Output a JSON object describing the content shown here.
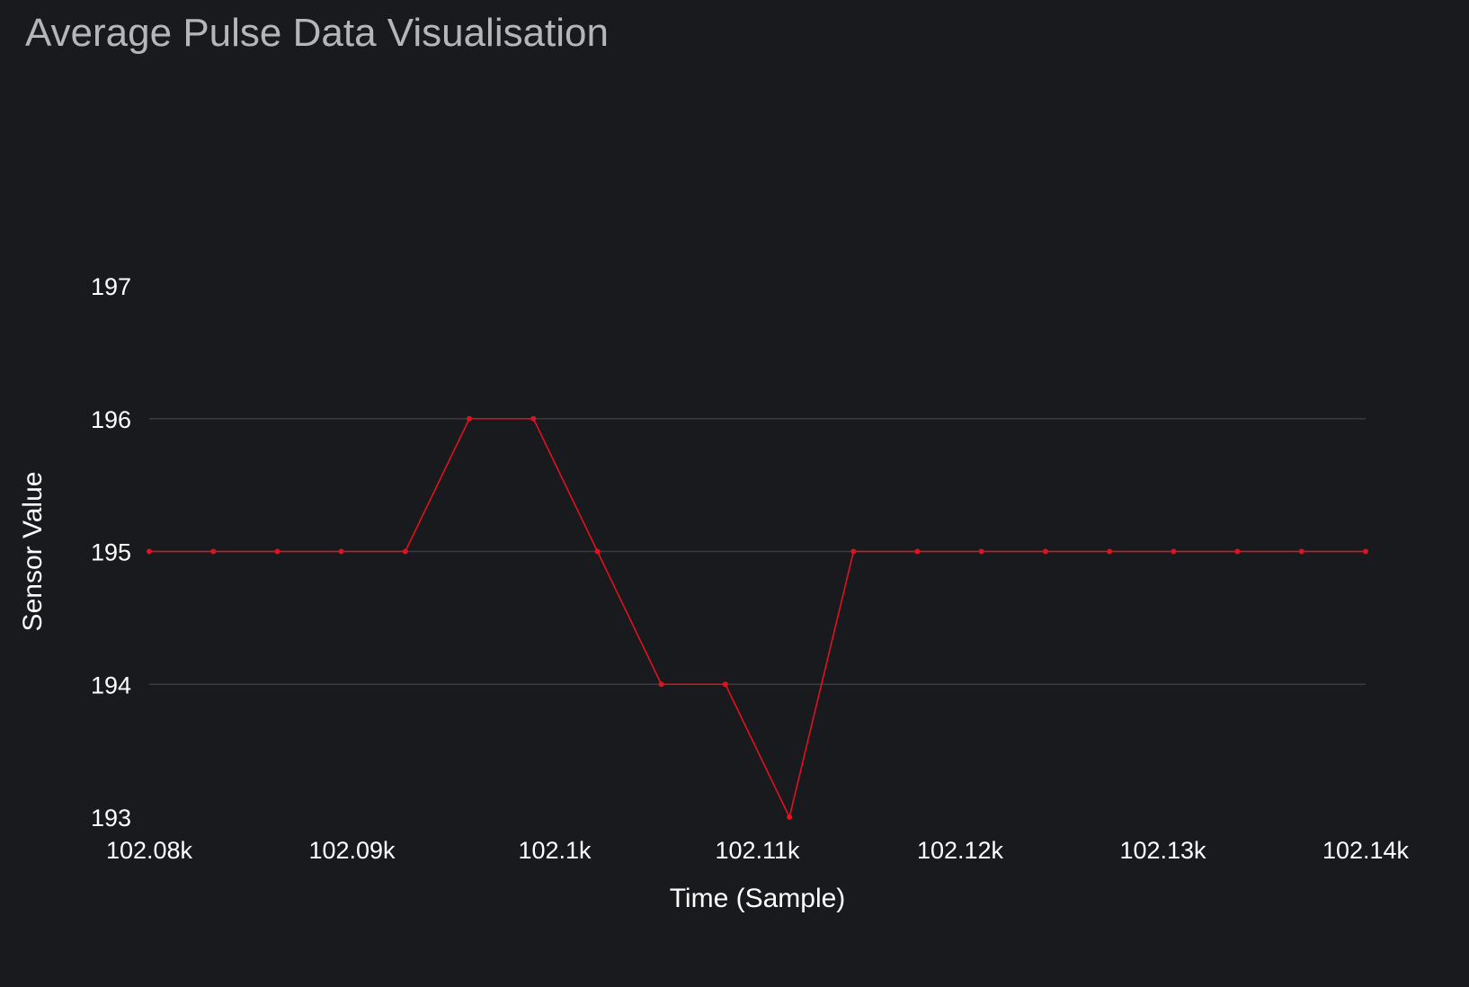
{
  "panel": {
    "title": "Average Pulse Data Visualisation"
  },
  "chart_data": {
    "type": "line",
    "title": "Average Pulse Data Visualisation",
    "xlabel": "Time (Sample)",
    "ylabel": "Sensor Value",
    "xlim": [
      102080,
      102140
    ],
    "ylim": [
      193,
      197
    ],
    "x_ticks": [
      102080,
      102090,
      102100,
      102110,
      102120,
      102130,
      102140
    ],
    "x_tick_labels": [
      "102.08k",
      "102.09k",
      "102.1k",
      "102.11k",
      "102.12k",
      "102.13k",
      "102.14k"
    ],
    "y_ticks": [
      193,
      194,
      195,
      196,
      197
    ],
    "y_tick_labels": [
      "193",
      "194",
      "195",
      "196",
      "197"
    ],
    "grid": true,
    "legend": "none",
    "colors": {
      "line": "#e0121f",
      "grid": "#3a3b40",
      "background": "#191a1e"
    },
    "series": [
      {
        "x": [
          102080,
          102083.16,
          102086.32,
          102089.47,
          102092.63,
          102095.79,
          102098.95,
          102102.11,
          102105.26,
          102108.42,
          102111.58,
          102114.74,
          102117.89,
          102121.05,
          102124.21,
          102127.37,
          102130.53,
          102133.68,
          102136.84,
          102140
        ],
        "values": [
          195,
          195,
          195,
          195,
          195,
          196,
          196,
          195,
          194,
          194,
          193,
          195,
          195,
          195,
          195,
          195,
          195,
          195,
          195,
          195
        ]
      }
    ]
  }
}
